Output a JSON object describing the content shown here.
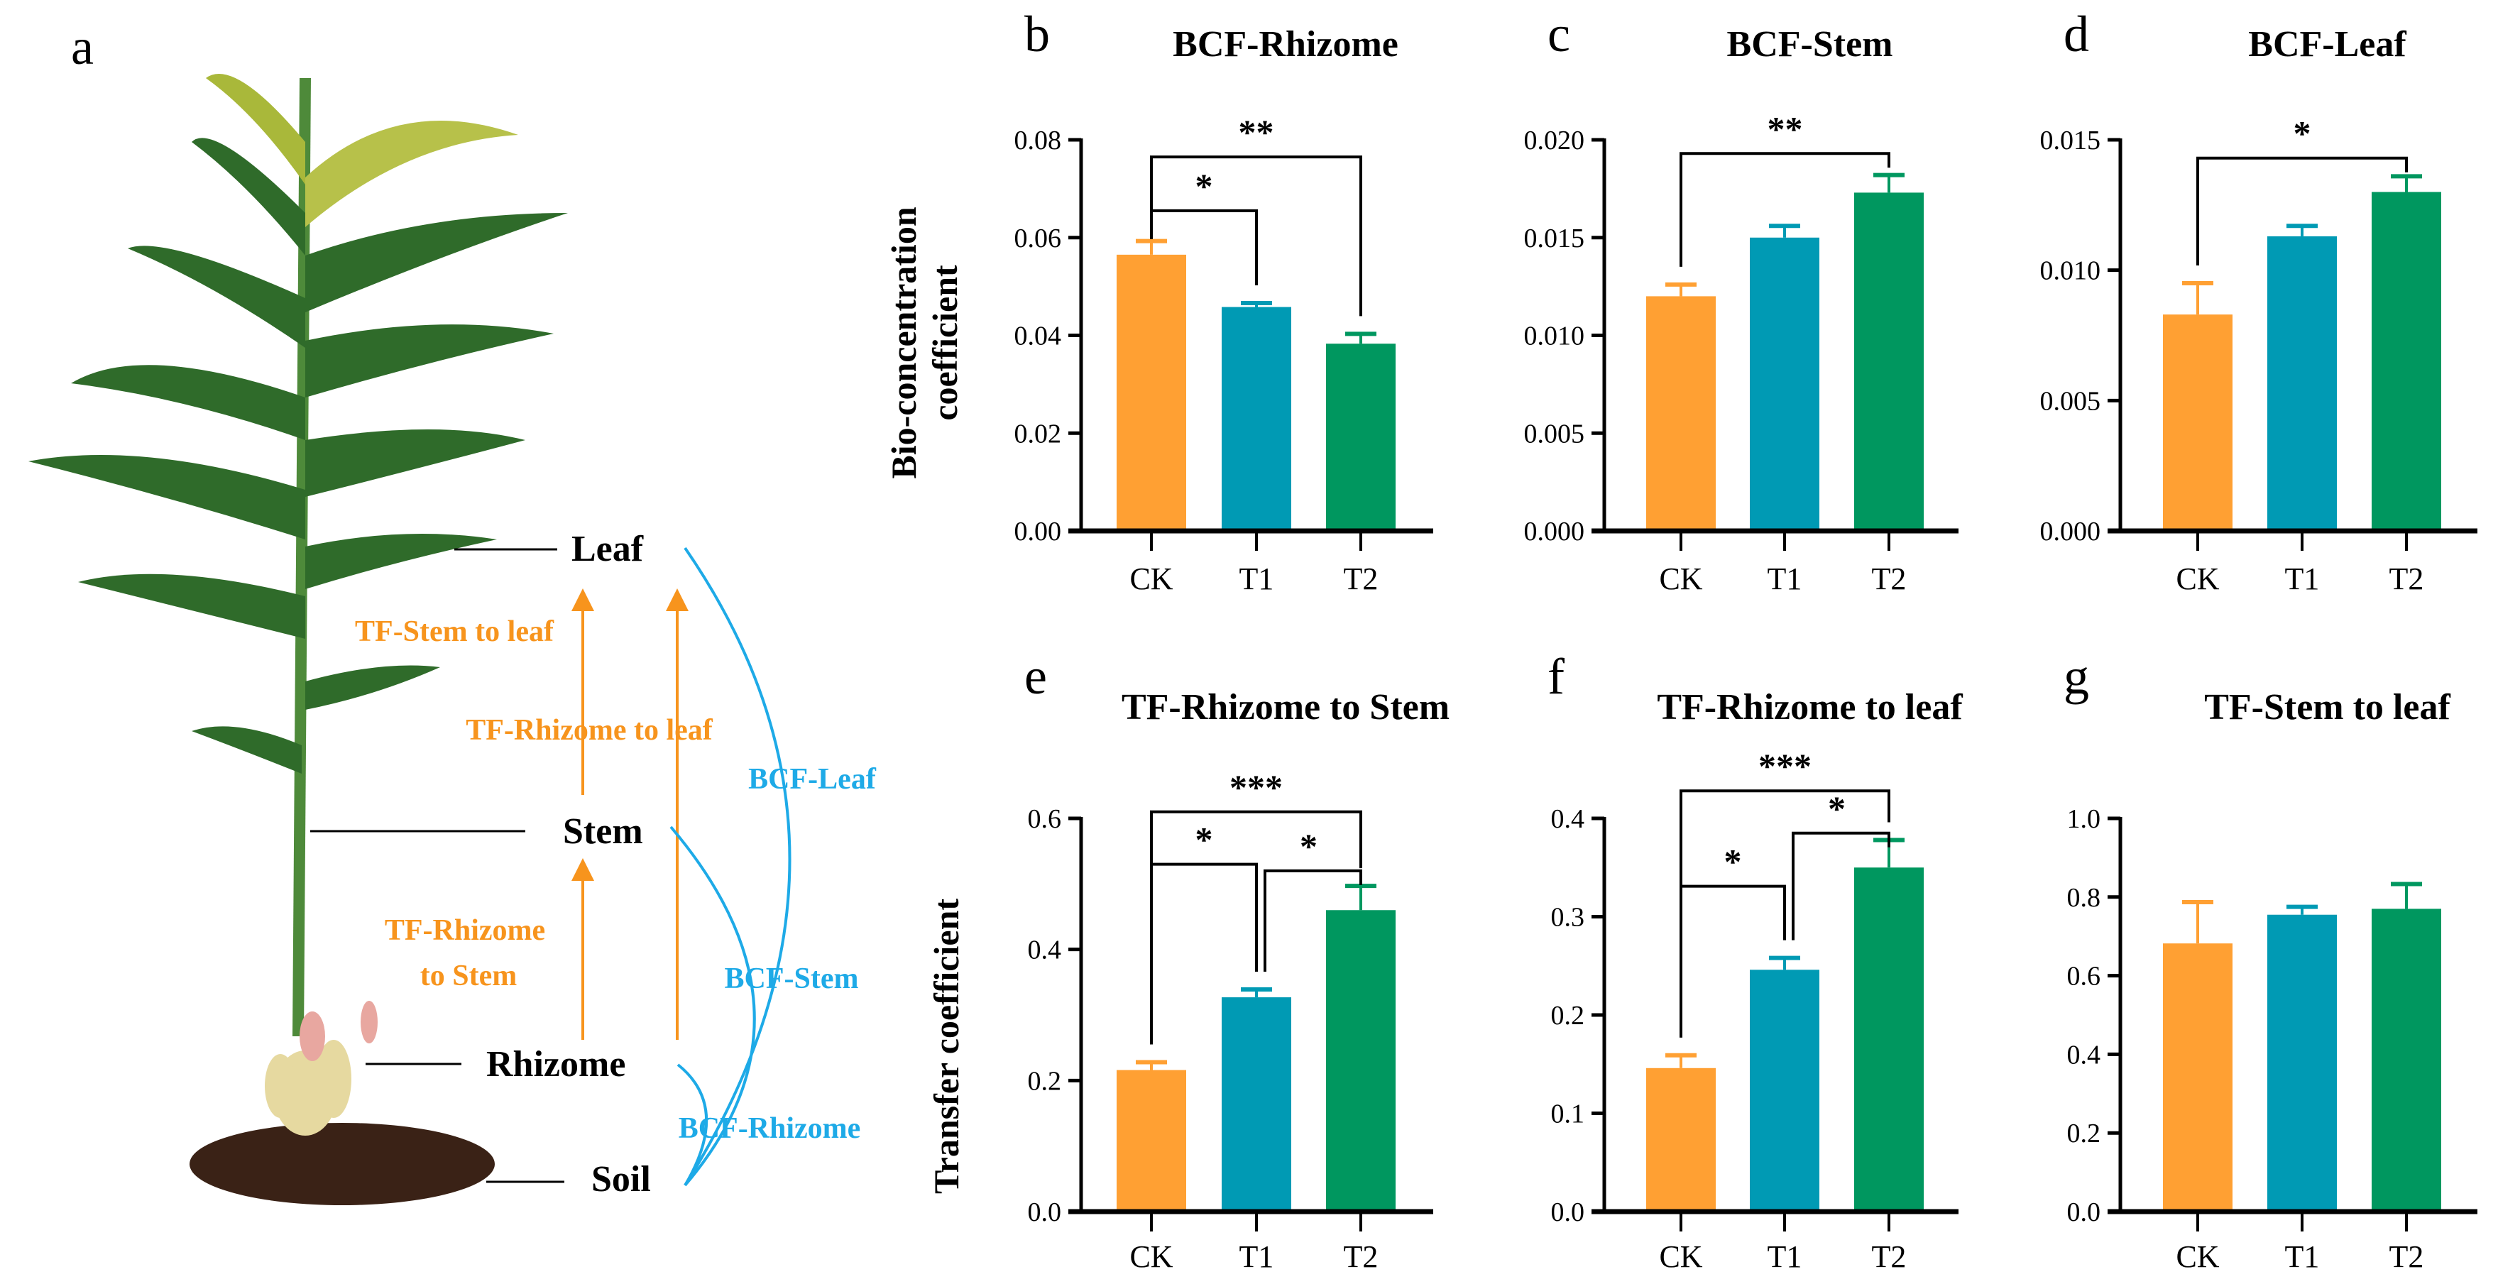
{
  "panel_a": {
    "letter": "a",
    "labels": {
      "leaf": "Leaf",
      "stem": "Stem",
      "rhizome": "Rhizome",
      "soil": "Soil"
    },
    "tf_labels": {
      "stem_to_leaf": "TF-Stem to leaf",
      "rhizome_to_leaf": "TF-Rhizome to leaf",
      "rhizome_to_stem_line1": "TF-Rhizome",
      "rhizome_to_stem_line2": "to Stem"
    },
    "bcf_labels": {
      "leaf": "BCF-Leaf",
      "stem": "BCF-Stem",
      "rhizome": "BCF-Rhizome"
    },
    "colors": {
      "tf": "#F7941D",
      "bcf": "#1EAAE7",
      "leaf": "#2F6B2A",
      "soil": "#3A2216"
    }
  },
  "y_labels": {
    "top_line1": "Bio-concentration",
    "top_line2": "coefficient",
    "bottom": "Transfer coefficient"
  },
  "colors": {
    "CK": "#FFA033",
    "T1": "#009AB4",
    "T2": "#00975F"
  },
  "chart_data": [
    {
      "id": "b",
      "type": "bar",
      "letter": "b",
      "title": "BCF-Rhizome",
      "categories": [
        "CK",
        "T1",
        "T2"
      ],
      "values": [
        0.0565,
        0.0458,
        0.0383
      ],
      "errors": [
        0.0028,
        0.0008,
        0.002
      ],
      "ylim": [
        0,
        0.08
      ],
      "ticks": [
        0,
        0.02,
        0.04,
        0.06,
        0.08
      ],
      "tick_labels": [
        "0.00",
        "0.02",
        "0.04",
        "0.06",
        "0.08"
      ],
      "ylabel": "Bio-concentration coefficient",
      "significance": [
        {
          "from": "CK",
          "to": "T1",
          "label": "*",
          "y": 0.0655
        },
        {
          "from": "CK",
          "to": "T2",
          "label": "**",
          "y": 0.0765
        }
      ]
    },
    {
      "id": "c",
      "type": "bar",
      "letter": "c",
      "title": "BCF-Stem",
      "categories": [
        "CK",
        "T1",
        "T2"
      ],
      "values": [
        0.012,
        0.015,
        0.0173
      ],
      "errors": [
        0.0006,
        0.0006,
        0.0009
      ],
      "ylim": [
        0,
        0.02
      ],
      "ticks": [
        0,
        0.005,
        0.01,
        0.015,
        0.02
      ],
      "tick_labels": [
        "0.000",
        "0.005",
        "0.010",
        "0.015",
        "0.020"
      ],
      "ylabel": "",
      "significance": [
        {
          "from": "CK",
          "to": "T2",
          "label": "**",
          "y": 0.0193
        }
      ]
    },
    {
      "id": "d",
      "type": "bar",
      "letter": "d",
      "title": "BCF-Leaf",
      "categories": [
        "CK",
        "T1",
        "T2"
      ],
      "values": [
        0.0083,
        0.0113,
        0.013
      ],
      "errors": [
        0.0012,
        0.0004,
        0.0006
      ],
      "ylim": [
        0,
        0.015
      ],
      "ticks": [
        0,
        0.005,
        0.01,
        0.015
      ],
      "tick_labels": [
        "0.000",
        "0.005",
        "0.010",
        "0.015"
      ],
      "ylabel": "",
      "significance": [
        {
          "from": "CK",
          "to": "T2",
          "label": "*",
          "y": 0.0143
        }
      ]
    },
    {
      "id": "e",
      "type": "bar",
      "letter": "e",
      "title": "TF-Rhizome to Stem",
      "categories": [
        "CK",
        "T1",
        "T2"
      ],
      "values": [
        0.216,
        0.327,
        0.46
      ],
      "errors": [
        0.012,
        0.012,
        0.037
      ],
      "ylim": [
        0,
        0.6
      ],
      "ticks": [
        0,
        0.2,
        0.4,
        0.6
      ],
      "tick_labels": [
        "0.0",
        "0.2",
        "0.4",
        "0.6"
      ],
      "ylabel": "Transfer coefficient",
      "significance": [
        {
          "from": "CK",
          "to": "T1",
          "label": "*",
          "y": 0.53
        },
        {
          "from": "T1",
          "to": "T2",
          "label": "*",
          "y": 0.52
        },
        {
          "from": "CK",
          "to": "T2",
          "label": "***",
          "y": 0.61
        }
      ]
    },
    {
      "id": "f",
      "type": "bar",
      "letter": "f",
      "title": "TF-Rhizome to leaf",
      "categories": [
        "CK",
        "T1",
        "T2"
      ],
      "values": [
        0.146,
        0.246,
        0.35
      ],
      "errors": [
        0.013,
        0.012,
        0.028
      ],
      "ylim": [
        0,
        0.4
      ],
      "ticks": [
        0,
        0.1,
        0.2,
        0.3,
        0.4
      ],
      "tick_labels": [
        "0.0",
        "0.1",
        "0.2",
        "0.3",
        "0.4"
      ],
      "ylabel": "",
      "significance": [
        {
          "from": "CK",
          "to": "T1",
          "label": "*",
          "y": 0.331
        },
        {
          "from": "T1",
          "to": "T2",
          "label": "*",
          "y": 0.385
        },
        {
          "from": "CK",
          "to": "T2",
          "label": "***",
          "y": 0.428
        }
      ]
    },
    {
      "id": "g",
      "type": "bar",
      "letter": "g",
      "title": "TF-Stem to leaf",
      "categories": [
        "CK",
        "T1",
        "T2"
      ],
      "values": [
        0.682,
        0.755,
        0.77
      ],
      "errors": [
        0.105,
        0.02,
        0.063
      ],
      "ylim": [
        0,
        1.0
      ],
      "ticks": [
        0,
        0.2,
        0.4,
        0.6,
        0.8,
        1.0
      ],
      "tick_labels": [
        "0.0",
        "0.2",
        "0.4",
        "0.6",
        "0.8",
        "1.0"
      ],
      "ylabel": "",
      "significance": []
    }
  ]
}
